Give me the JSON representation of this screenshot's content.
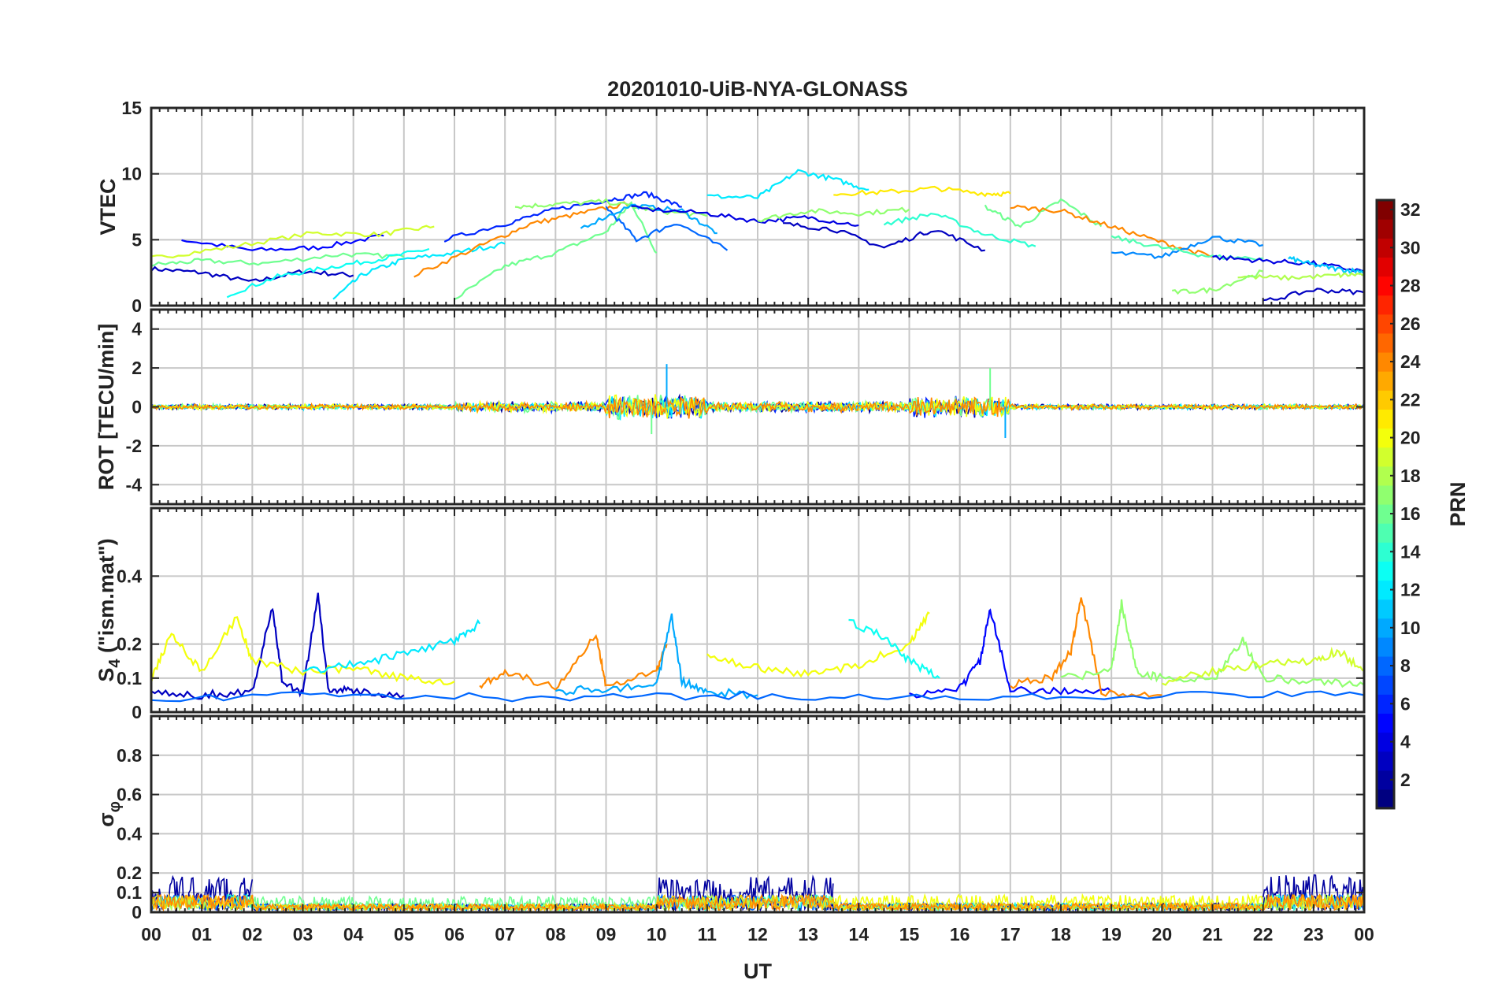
{
  "chart_data": {
    "type": "line",
    "title": "20201010-UiB-NYA-GLONASS",
    "xlabel": "UT",
    "x_tick_labels": [
      "00",
      "01",
      "02",
      "03",
      "04",
      "05",
      "06",
      "07",
      "08",
      "09",
      "10",
      "11",
      "12",
      "13",
      "14",
      "15",
      "16",
      "17",
      "18",
      "19",
      "20",
      "21",
      "22",
      "23",
      "00"
    ],
    "xlim": [
      0,
      24
    ],
    "grid": true,
    "panels": [
      {
        "ylabel": "VTEC",
        "ylim": [
          0,
          15
        ],
        "yticks": [
          0,
          5,
          10,
          15
        ],
        "ytick_labels": [
          "0",
          "5",
          "10",
          "15"
        ],
        "series": [
          {
            "prn": 3,
            "x": [
              0,
              1,
              2,
              3,
              4
            ],
            "y": [
              2.8,
              2.5,
              1.8,
              2.6,
              2.3
            ]
          },
          {
            "prn": 5,
            "x": [
              0.6,
              2,
              3.3,
              4.6
            ],
            "y": [
              5.0,
              4.2,
              4.4,
              5.3
            ]
          },
          {
            "prn": 19,
            "x": [
              0,
              1.5,
              3.2,
              4.5,
              5.6
            ],
            "y": [
              3.6,
              4.4,
              5.5,
              5.4,
              6.0
            ]
          },
          {
            "prn": 16,
            "x": [
              0,
              1,
              2.2,
              3.8,
              5
            ],
            "y": [
              3.1,
              3.4,
              3.2,
              3.9,
              3.7
            ]
          },
          {
            "prn": 13,
            "x": [
              1.5,
              2.5,
              3.5,
              4.5,
              5.5
            ],
            "y": [
              0.8,
              2.2,
              2.9,
              3.5,
              4.3
            ]
          },
          {
            "prn": 12,
            "x": [
              3.6,
              4.2,
              5,
              6,
              7
            ],
            "y": [
              0.5,
              2.4,
              3.5,
              4.0,
              4.7
            ]
          },
          {
            "prn": 24,
            "x": [
              5.2,
              6.5,
              7.5,
              8.5,
              9.5
            ],
            "y": [
              2.3,
              4.5,
              6.2,
              7.0,
              7.8
            ]
          },
          {
            "prn": 6,
            "x": [
              5.8,
              7,
              8,
              9,
              9.8,
              10.5
            ],
            "y": [
              5.0,
              6.2,
              7.3,
              8.0,
              8.5,
              7.5
            ]
          },
          {
            "prn": 16,
            "x": [
              6,
              7,
              8,
              9,
              9.5,
              10
            ],
            "y": [
              0.5,
              3.0,
              4.0,
              5.6,
              7.8,
              4.0
            ]
          },
          {
            "prn": 17,
            "x": [
              7.2,
              8,
              9,
              10,
              11
            ],
            "y": [
              7.5,
              7.7,
              7.9,
              7.2,
              6.8
            ]
          },
          {
            "prn": 8,
            "x": [
              9,
              9.6,
              10.4,
              11.4
            ],
            "y": [
              7.5,
              5.0,
              6.3,
              4.2
            ]
          },
          {
            "prn": 10,
            "x": [
              8.5,
              9.5,
              10.5,
              11.2
            ],
            "y": [
              5.9,
              7.6,
              7.2,
              5.5
            ]
          },
          {
            "prn": 4,
            "x": [
              9.5,
              11,
              12,
              13,
              14
            ],
            "y": [
              7.4,
              7.0,
              6.4,
              6.7,
              6.1
            ]
          },
          {
            "prn": 12,
            "x": [
              11,
              12,
              12.8,
              13.5,
              14.2
            ],
            "y": [
              8.3,
              8.2,
              10.2,
              9.6,
              8.8
            ]
          },
          {
            "prn": 17,
            "x": [
              12,
              13,
              14,
              15
            ],
            "y": [
              6.5,
              7.2,
              7.0,
              7.3
            ]
          },
          {
            "prn": 21,
            "x": [
              13.5,
              14.5,
              15.5,
              16.5,
              17
            ],
            "y": [
              8.5,
              8.6,
              8.9,
              8.5,
              8.5
            ]
          },
          {
            "prn": 3,
            "x": [
              12.5,
              13.5,
              14.5,
              15.5,
              16.5
            ],
            "y": [
              6.2,
              5.8,
              4.4,
              5.8,
              4.2
            ]
          },
          {
            "prn": 14,
            "x": [
              14.5,
              15.5,
              16.5,
              17.5
            ],
            "y": [
              6.2,
              7.0,
              5.4,
              4.5
            ]
          },
          {
            "prn": 16,
            "x": [
              16.5,
              17.2,
              18,
              18.8
            ],
            "y": [
              7.5,
              6.0,
              8.0,
              6.0
            ]
          },
          {
            "prn": 24,
            "x": [
              17,
              18,
              19,
              20,
              21
            ],
            "y": [
              7.5,
              7.2,
              6.0,
              4.8,
              3.7
            ]
          },
          {
            "prn": 9,
            "x": [
              19,
              20,
              21,
              22
            ],
            "y": [
              4.0,
              3.7,
              5.2,
              4.6
            ]
          },
          {
            "prn": 15,
            "x": [
              19,
              20,
              21,
              22
            ],
            "y": [
              5.2,
              4.4,
              3.7,
              3.6
            ]
          },
          {
            "prn": 4,
            "x": [
              21,
              22,
              23,
              24
            ],
            "y": [
              3.7,
              3.4,
              3.2,
              2.6
            ]
          },
          {
            "prn": 11,
            "x": [
              22.5,
              23,
              23.6,
              24
            ],
            "y": [
              3.6,
              3.1,
              2.7,
              2.6
            ]
          },
          {
            "prn": 18,
            "x": [
              21.5,
              22.5,
              23.5,
              24
            ],
            "y": [
              2.2,
              2.1,
              2.3,
              2.4
            ]
          },
          {
            "prn": 17,
            "x": [
              20.2,
              21,
              22
            ],
            "y": [
              1.0,
              1.2,
              2.6
            ]
          },
          {
            "prn": 3,
            "x": [
              22,
              23,
              24
            ],
            "y": [
              0.3,
              1.2,
              1.0
            ]
          }
        ]
      },
      {
        "ylabel": "ROT [TECU/min]",
        "ylim": [
          -5,
          5
        ],
        "yticks": [
          -4,
          -2,
          0,
          2,
          4
        ],
        "ytick_labels": [
          "-4",
          "-2",
          "0",
          "2",
          "4"
        ],
        "noise_bands": [
          {
            "x": [
              0,
              6
            ],
            "amplitude": 0.15
          },
          {
            "x": [
              6,
              9
            ],
            "amplitude": 0.3
          },
          {
            "x": [
              9,
              11
            ],
            "amplitude": 0.7
          },
          {
            "x": [
              11,
              15
            ],
            "amplitude": 0.3
          },
          {
            "x": [
              15,
              17
            ],
            "amplitude": 0.6
          },
          {
            "x": [
              17,
              24
            ],
            "amplitude": 0.15
          }
        ],
        "peaks": [
          {
            "x": 10.2,
            "y": 2.2
          },
          {
            "x": 16.6,
            "y": 2.0
          },
          {
            "x": 16.9,
            "y": -1.6
          },
          {
            "x": 9.9,
            "y": -1.4
          }
        ],
        "series_prns": [
          2,
          6,
          12,
          16,
          20,
          24
        ]
      },
      {
        "ylabel": "S4 (\"ism.mat\")",
        "ylim": [
          0,
          0.6
        ],
        "yticks": [
          0,
          0.1,
          0.2,
          0.4
        ],
        "ytick_labels": [
          "0",
          "0.1",
          "0.2",
          "0.4"
        ],
        "series": [
          {
            "prn": 3,
            "x": [
              0,
              1,
              2,
              2.4,
              2.6,
              3,
              3.3,
              3.5,
              4,
              5
            ],
            "y": [
              0.06,
              0.05,
              0.06,
              0.31,
              0.08,
              0.06,
              0.35,
              0.07,
              0.06,
              0.05
            ]
          },
          {
            "prn": 20,
            "x": [
              0,
              0.4,
              1,
              1.7,
              2,
              3,
              4,
              5,
              6
            ],
            "y": [
              0.1,
              0.23,
              0.12,
              0.28,
              0.15,
              0.12,
              0.13,
              0.1,
              0.09
            ]
          },
          {
            "prn": 12,
            "x": [
              3,
              4,
              5,
              6,
              6.5
            ],
            "y": [
              0.12,
              0.14,
              0.17,
              0.21,
              0.26
            ]
          },
          {
            "prn": 24,
            "x": [
              6.5,
              7,
              8,
              8.8,
              9,
              10,
              10.2
            ],
            "y": [
              0.08,
              0.12,
              0.07,
              0.23,
              0.08,
              0.12,
              0.2
            ]
          },
          {
            "prn": 10,
            "x": [
              8,
              9,
              10,
              10.3,
              10.5,
              11,
              12
            ],
            "y": [
              0.06,
              0.07,
              0.08,
              0.28,
              0.09,
              0.06,
              0.05
            ]
          },
          {
            "prn": 20,
            "x": [
              11,
              12,
              13,
              14,
              15,
              15.4
            ],
            "y": [
              0.16,
              0.13,
              0.11,
              0.14,
              0.2,
              0.29
            ]
          },
          {
            "prn": 13,
            "x": [
              13.8,
              14.5,
              15,
              15.6
            ],
            "y": [
              0.27,
              0.22,
              0.15,
              0.1
            ]
          },
          {
            "prn": 5,
            "x": [
              15,
              16,
              16.4,
              16.6,
              17,
              18,
              19
            ],
            "y": [
              0.05,
              0.07,
              0.15,
              0.3,
              0.07,
              0.06,
              0.06
            ]
          },
          {
            "prn": 24,
            "x": [
              17,
              17.8,
              18.2,
              18.4,
              18.8,
              20
            ],
            "y": [
              0.08,
              0.1,
              0.18,
              0.34,
              0.06,
              0.05
            ]
          },
          {
            "prn": 17,
            "x": [
              18,
              19,
              19.2,
              19.5,
              20,
              21,
              21.6,
              22,
              23,
              24
            ],
            "y": [
              0.1,
              0.12,
              0.32,
              0.12,
              0.1,
              0.09,
              0.21,
              0.1,
              0.09,
              0.08
            ]
          },
          {
            "prn": 19,
            "x": [
              20,
              21,
              22,
              23,
              23.5,
              24
            ],
            "y": [
              0.09,
              0.12,
              0.14,
              0.15,
              0.18,
              0.12
            ]
          },
          {
            "prn": 8,
            "x": [
              0,
              4,
              8,
              12,
              16,
              20,
              24
            ],
            "y": [
              0.04,
              0.05,
              0.04,
              0.05,
              0.04,
              0.05,
              0.05
            ]
          }
        ]
      },
      {
        "ylabel": "σφ",
        "ylim": [
          0,
          1
        ],
        "yticks": [
          0,
          0.1,
          0.2,
          0.4,
          0.6,
          0.8
        ],
        "ytick_labels": [
          "0",
          "0.1",
          "0.2",
          "0.4",
          "0.6",
          "0.8"
        ],
        "noise_bands": [
          {
            "x": [
              0,
              2
            ],
            "amplitude": 0.18,
            "prn": 2
          },
          {
            "x": [
              2,
              10
            ],
            "amplitude": 0.07,
            "prn": 16
          },
          {
            "x": [
              10,
              13.5
            ],
            "amplitude": 0.17,
            "prn": 2
          },
          {
            "x": [
              13.5,
              22
            ],
            "amplitude": 0.08,
            "prn": 20
          },
          {
            "x": [
              22,
              24
            ],
            "amplitude": 0.18,
            "prn": 2
          }
        ],
        "series_prns": [
          2,
          8,
          14,
          18,
          22,
          24
        ]
      }
    ],
    "colorbar": {
      "label": "PRN",
      "range": [
        1,
        32
      ],
      "tick_labels": [
        "2",
        "4",
        "6",
        "8",
        "10",
        "12",
        "14",
        "16",
        "18",
        "20",
        "22",
        "24",
        "26",
        "28",
        "30",
        "32"
      ],
      "colormap": "jet"
    }
  }
}
